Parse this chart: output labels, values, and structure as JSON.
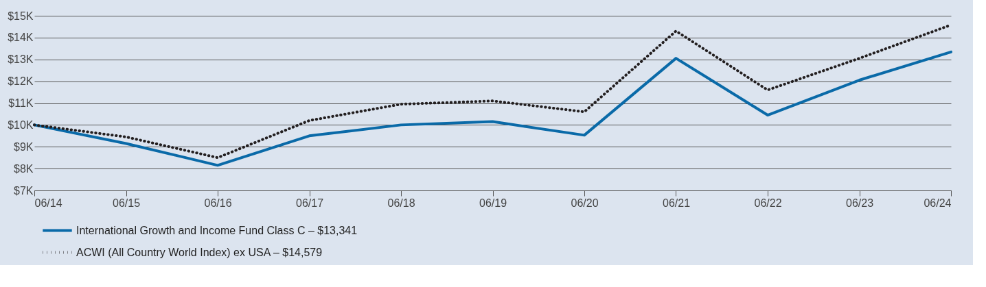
{
  "chart_data": {
    "type": "line",
    "categories": [
      "06/14",
      "06/15",
      "06/16",
      "06/17",
      "06/18",
      "06/19",
      "06/20",
      "06/21",
      "06/22",
      "06/23",
      "06/24"
    ],
    "series": [
      {
        "name": "International Growth and Income Fund Class C – $13,341",
        "color": "#0a6aa8",
        "line_style": "solid",
        "values": [
          10000,
          9150,
          8150,
          9500,
          10000,
          10150,
          9530,
          13050,
          10450,
          12050,
          13341
        ]
      },
      {
        "name": "ACWI (All Country World Index) ex USA – $14,579",
        "color": "#231f20",
        "line_style": "dotted",
        "values": [
          10000,
          9450,
          8500,
          10200,
          10950,
          11100,
          10600,
          14300,
          11600,
          13050,
          14579
        ]
      }
    ],
    "ylim": [
      7000,
      15000
    ],
    "yticks": [
      {
        "value": 7000,
        "label": "$7K"
      },
      {
        "value": 8000,
        "label": "$8K"
      },
      {
        "value": 9000,
        "label": "$9K"
      },
      {
        "value": 10000,
        "label": "$10K"
      },
      {
        "value": 11000,
        "label": "$11K"
      },
      {
        "value": 12000,
        "label": "$12K"
      },
      {
        "value": 13000,
        "label": "$13K"
      },
      {
        "value": 14000,
        "label": "$14K"
      },
      {
        "value": 15000,
        "label": "$15K"
      }
    ],
    "grid": "y",
    "legend": "bottom left",
    "marker": "none"
  }
}
